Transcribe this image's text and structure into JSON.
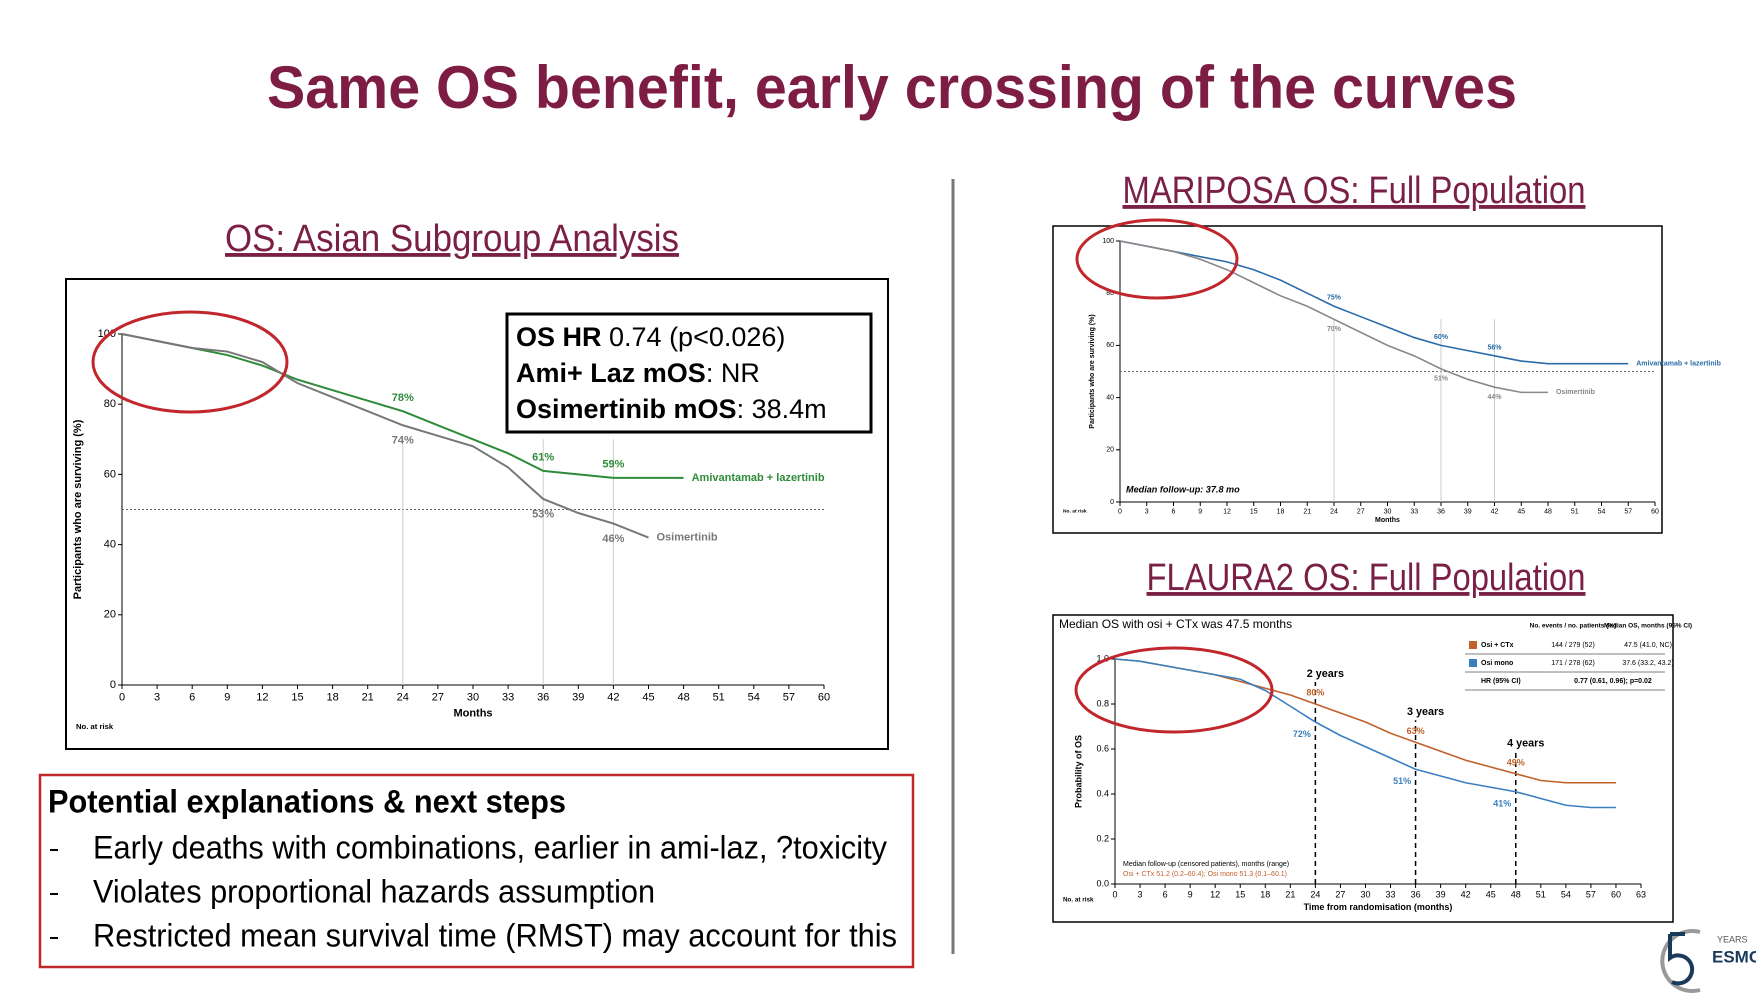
{
  "title": "Same OS benefit, early crossing of the curves",
  "left": {
    "heading": "OS: Asian Subgroup Analysis",
    "stats": [
      {
        "bold": "OS HR",
        "text": " 0.74 (p<0.026)"
      },
      {
        "bold": "Ami+ Laz mOS",
        "text": ": NR"
      },
      {
        "bold": "Osimertinib mOS",
        "text": ": 38.4m"
      }
    ]
  },
  "explanations": {
    "heading": "Potential explanations & next steps",
    "bullets": [
      "Early deaths with combinations, earlier in ami-laz, ?toxicity",
      "Violates proportional hazards assumption",
      "Restricted mean survival time (RMST) may account for this"
    ]
  },
  "right": {
    "headings": [
      "MARIPOSA OS: Full Population",
      "FLAURA2 OS: Full Population"
    ]
  },
  "logo": {
    "years": "YEARS",
    "name": "ESMO"
  },
  "chart_data": [
    {
      "type": "line",
      "x_label": "Months",
      "y_label": "Participants who are surviving (%)",
      "at_risk": "No. at risk",
      "x": [
        0,
        3,
        6,
        9,
        12,
        15,
        18,
        21,
        24,
        27,
        30,
        33,
        36,
        39,
        42,
        45,
        48
      ],
      "series": [
        {
          "name": "Amivantamab + lazertinib",
          "color": "#2e8b3a",
          "values": [
            100,
            98,
            96,
            94,
            91,
            87,
            84,
            81,
            78,
            74,
            70,
            66,
            61,
            60,
            59,
            59,
            59
          ],
          "value_labels": [
            null,
            null,
            null,
            null,
            null,
            null,
            null,
            null,
            "78%",
            null,
            null,
            null,
            "61%",
            null,
            "59%",
            null,
            null
          ]
        },
        {
          "name": "Osimertinib",
          "color": "#777777",
          "values": [
            100,
            98,
            96,
            95,
            92,
            86,
            82,
            78,
            74,
            71,
            68,
            62,
            53,
            49,
            46,
            42,
            null
          ],
          "value_labels": [
            null,
            null,
            null,
            null,
            null,
            null,
            null,
            null,
            "74%",
            null,
            null,
            null,
            "53%",
            null,
            "46%",
            null,
            null
          ]
        }
      ],
      "xlim": [
        0,
        60
      ],
      "xticks": [
        0,
        3,
        6,
        9,
        12,
        15,
        18,
        21,
        24,
        27,
        30,
        33,
        36,
        39,
        42,
        45,
        48,
        51,
        54,
        57,
        60
      ],
      "ylim": [
        0,
        100
      ],
      "yticks": [
        0,
        20,
        40,
        60,
        80,
        100
      ],
      "hline": 50,
      "vlines": [
        24,
        36,
        42
      ],
      "legend": "end"
    },
    {
      "type": "line",
      "x_label": "Months",
      "y_label": "Participants who are surviving (%)",
      "at_risk": "No. at risk",
      "note": "Median follow-up: 37.8 mo",
      "x": [
        0,
        3,
        6,
        9,
        12,
        15,
        18,
        21,
        24,
        27,
        30,
        33,
        36,
        39,
        42,
        45,
        48,
        51,
        54,
        57
      ],
      "series": [
        {
          "name": "Amivantamab + lazertinib",
          "color": "#2a6ca8",
          "values": [
            100,
            98,
            96,
            94,
            92,
            89,
            85,
            80,
            75,
            71,
            67,
            63,
            60,
            58,
            56,
            54,
            53,
            53,
            53,
            53
          ],
          "value_labels": [
            null,
            null,
            null,
            null,
            null,
            null,
            null,
            null,
            "75%",
            null,
            null,
            null,
            "60%",
            null,
            "56%",
            null,
            null,
            null,
            null,
            null
          ]
        },
        {
          "name": "Osimertinib",
          "color": "#888888",
          "values": [
            100,
            98,
            96,
            93,
            89,
            84,
            79,
            75,
            70,
            65,
            60,
            56,
            51,
            47,
            44,
            42,
            42,
            null,
            null,
            null
          ],
          "value_labels": [
            null,
            null,
            null,
            null,
            null,
            null,
            null,
            null,
            "70%",
            null,
            null,
            null,
            "51%",
            null,
            "44%",
            null,
            null,
            null,
            null,
            null
          ]
        }
      ],
      "xlim": [
        0,
        60
      ],
      "xticks": [
        0,
        3,
        6,
        9,
        12,
        15,
        18,
        21,
        24,
        27,
        30,
        33,
        36,
        39,
        42,
        45,
        48,
        51,
        54,
        57,
        60
      ],
      "ylim": [
        0,
        100
      ],
      "yticks": [
        0,
        20,
        40,
        60,
        80,
        100
      ],
      "hline": 50,
      "vlines": [
        24,
        36,
        42
      ],
      "legend": "end"
    },
    {
      "type": "line",
      "title": "Median OS with osi + CTx was 47.5 months",
      "x_label": "Time from randomisation (months)",
      "y_label": "Probability of OS",
      "at_risk": "No. at risk",
      "footnote": [
        "Median follow-up (censored patients), months (range)",
        "Osi + CTx 51.2 (0.2–60.4); Osi mono 51.3 (0.1–60.1)"
      ],
      "x": [
        0,
        3,
        6,
        9,
        12,
        15,
        18,
        21,
        24,
        27,
        30,
        33,
        36,
        39,
        42,
        45,
        48,
        51,
        54,
        57,
        60
      ],
      "series": [
        {
          "name": "Osi + CTx",
          "color": "#c0602a",
          "values": [
            1.0,
            0.99,
            0.97,
            0.95,
            0.93,
            0.9,
            0.87,
            0.84,
            0.8,
            0.76,
            0.72,
            0.67,
            0.63,
            0.59,
            0.55,
            0.52,
            0.49,
            0.46,
            0.45,
            0.45,
            0.45
          ],
          "value_labels": [
            null,
            null,
            null,
            null,
            null,
            null,
            null,
            null,
            "80%",
            null,
            null,
            null,
            "63%",
            null,
            null,
            null,
            "49%",
            null,
            null,
            null,
            null
          ]
        },
        {
          "name": "Osi mono",
          "color": "#3a7fc0",
          "values": [
            1.0,
            0.99,
            0.97,
            0.95,
            0.93,
            0.91,
            0.86,
            0.79,
            0.72,
            0.66,
            0.61,
            0.56,
            0.51,
            0.48,
            0.45,
            0.43,
            0.41,
            0.38,
            0.35,
            0.34,
            0.34
          ],
          "value_labels": [
            null,
            null,
            null,
            null,
            null,
            null,
            null,
            null,
            "72%",
            null,
            null,
            null,
            "51%",
            null,
            null,
            null,
            "41%",
            null,
            null,
            null,
            null
          ]
        }
      ],
      "xlim": [
        0,
        63
      ],
      "xticks": [
        0,
        3,
        6,
        9,
        12,
        15,
        18,
        21,
        24,
        27,
        30,
        33,
        36,
        39,
        42,
        45,
        48,
        51,
        54,
        57,
        60,
        63
      ],
      "ylim": [
        0,
        1
      ],
      "yticks": [
        {
          "value": 0,
          "label": "0.0"
        },
        0.2,
        0.4,
        0.6,
        0.8,
        {
          "value": 1,
          "label": "1.0"
        }
      ],
      "milestones": [
        {
          "value": 24,
          "label": "2 years"
        },
        {
          "value": 36,
          "label": "3 years"
        },
        {
          "value": 48,
          "label": "4 years"
        }
      ],
      "legend": "table",
      "table": {
        "header": [
          "No. events / no. patients (%)",
          "Median OS, months (95% CI)"
        ],
        "rows": [
          [
            "Osi + CTx",
            "144 / 279 (52)",
            "47.5 (41.0, NC)"
          ],
          [
            "Osi mono",
            "171 / 278 (62)",
            "37.6 (33.2, 43.2)"
          ],
          [
            "HR (95% CI)",
            "0.77 (0.61, 0.96); p=0.02"
          ]
        ]
      }
    }
  ]
}
